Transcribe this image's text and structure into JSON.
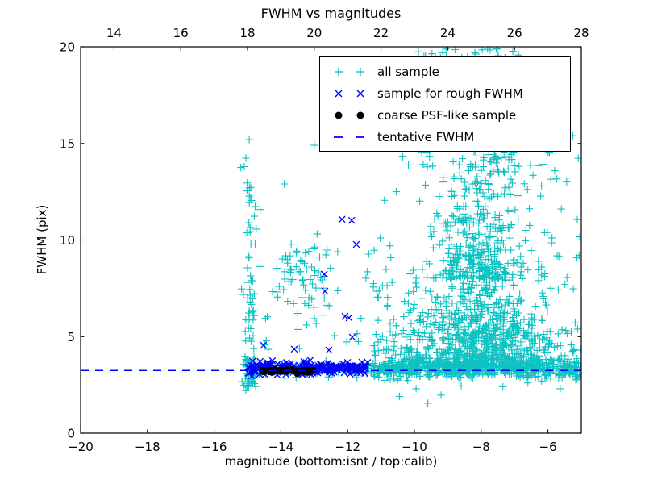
{
  "chart_data": {
    "type": "scatter",
    "title": "FWHM vs magnitudes",
    "xlabel": "magnitude (bottom:isnt / top:calib)",
    "ylabel": "FWHM (pix)",
    "xlim": [
      -20,
      -5
    ],
    "ylim": [
      0,
      20
    ],
    "xticks_bottom": [
      -20,
      -18,
      -16,
      -14,
      -12,
      -10,
      -8,
      -6
    ],
    "xticks_top": [
      14,
      16,
      18,
      20,
      22,
      24,
      26,
      28
    ],
    "top_axis_offset": 33,
    "yticks": [
      0,
      5,
      10,
      15,
      20
    ],
    "grid": false,
    "legend_position": "upper right",
    "tick_direction": "in",
    "tentative_fwhm": 3.25,
    "seed": 1337,
    "series": [
      {
        "name": "all sample",
        "marker": "plus",
        "color": "#00BFBF"
      },
      {
        "name": "sample for rough FWHM",
        "marker": "x",
        "color": "#0000FF"
      },
      {
        "name": "coarse PSF-like sample",
        "marker": "dot",
        "color": "#000000"
      },
      {
        "name": "tentative FWHM",
        "marker": "dashes",
        "color": "#0000FF",
        "line_y": 3.25
      }
    ],
    "clusters": [
      {
        "s": 0,
        "n": 150,
        "x": [
          "u",
          -15.05,
          -11.3
        ],
        "y": [
          "n",
          3.32,
          0.18,
          2.85,
          3.95
        ]
      },
      {
        "s": 0,
        "n": 620,
        "x": [
          "u",
          -11.3,
          -5.0
        ],
        "y": [
          "n",
          3.3,
          0.22,
          2.7,
          4.15
        ]
      },
      {
        "s": 0,
        "n": 95,
        "x": [
          "n",
          -14.93,
          0.12,
          -15.2,
          -14.62
        ],
        "y": [
          "p",
          2.4,
          15.0,
          1.7
        ]
      },
      {
        "s": 0,
        "n": 70,
        "x": [
          "n",
          -13.25,
          0.5,
          -14.25,
          -12.3
        ],
        "y": [
          "n",
          7.9,
          1.1,
          5.6,
          10.4
        ]
      },
      {
        "s": 0,
        "n": 14,
        "x": [
          "u",
          -14.6,
          -11.5
        ],
        "y": [
          "u",
          4.1,
          6.2
        ]
      },
      {
        "s": 0,
        "n": 900,
        "funnel": {
          "y0": 3.4,
          "scale": 2.0,
          "ymax": 9.6,
          "xmu": -8.0,
          "sig0": 1.3,
          "slope": 0.13,
          "sigmin": 0.5,
          "xmin": -11.2,
          "xmax": -5.02
        }
      },
      {
        "s": 0,
        "n": 270,
        "x": [
          "n",
          -8.15,
          0.85,
          -10.9,
          -5.05
        ],
        "y": [
          "p",
          8.0,
          12.5,
          1.3
        ]
      },
      {
        "s": 0,
        "n": 115,
        "x": [
          "n",
          -8.0,
          1.15,
          -10.9,
          -5.05
        ],
        "y": [
          "p",
          12.5,
          16.6,
          1.4
        ]
      },
      {
        "s": 0,
        "n": 55,
        "x": [
          "n",
          -7.8,
          0.55,
          -9.3,
          -6.5
        ],
        "y": [
          "n",
          14.7,
          0.85,
          12.8,
          16.4
        ]
      },
      {
        "s": 0,
        "n": 26,
        "x": [
          "u",
          -9.9,
          -6.8
        ],
        "y": [
          "u",
          19.3,
          19.95
        ]
      },
      {
        "s": 0,
        "n": 65,
        "x": [
          "u",
          -6.6,
          -5.02
        ],
        "y": [
          "p",
          3.8,
          16.0,
          2.2
        ]
      },
      {
        "s": 0,
        "n": 12,
        "x": [
          "u",
          -11.6,
          -10.7
        ],
        "y": [
          "u",
          7.0,
          10.5
        ]
      },
      {
        "s": 0,
        "n": 60,
        "x": [
          "u",
          -11.25,
          -9.7
        ],
        "y": [
          "p",
          3.7,
          8.5,
          2.0
        ]
      },
      {
        "s": 1,
        "n": 235,
        "x": [
          "u",
          -15.0,
          -11.35
        ],
        "y": [
          "n",
          3.36,
          0.15,
          2.95,
          3.95
        ]
      },
      {
        "s": 2,
        "n": 52,
        "x": [
          "u",
          -14.58,
          -12.97
        ],
        "y": [
          "n",
          3.21,
          0.055,
          3.05,
          3.38
        ]
      }
    ],
    "explicit_points": {
      "all_sample": [
        [
          -14.95,
          15.2
        ],
        [
          -15.1,
          13.8
        ],
        [
          -13.9,
          12.9
        ],
        [
          -13.0,
          14.9
        ],
        [
          -10.35,
          14.3
        ],
        [
          -15.05,
          2.2
        ],
        [
          -14.9,
          2.6
        ],
        [
          -10.45,
          1.9
        ],
        [
          -9.95,
          2.3
        ],
        [
          -9.2,
          1.97
        ],
        [
          -8.6,
          2.45
        ],
        [
          -7.35,
          2.4
        ],
        [
          -6.6,
          2.6
        ],
        [
          -5.63,
          2.3
        ],
        [
          -9.6,
          1.55
        ]
      ],
      "rough_fwhm_sample": [
        [
          -14.52,
          4.55
        ],
        [
          -13.6,
          4.35
        ],
        [
          -12.56,
          4.3
        ],
        [
          -11.86,
          4.97
        ],
        [
          -12.08,
          6.05
        ],
        [
          -11.96,
          5.97
        ],
        [
          -12.68,
          7.35
        ],
        [
          -12.7,
          8.23
        ],
        [
          -12.17,
          11.07
        ],
        [
          -11.88,
          11.02
        ],
        [
          -11.74,
          9.77
        ]
      ],
      "coarse_psf_sample": []
    }
  }
}
